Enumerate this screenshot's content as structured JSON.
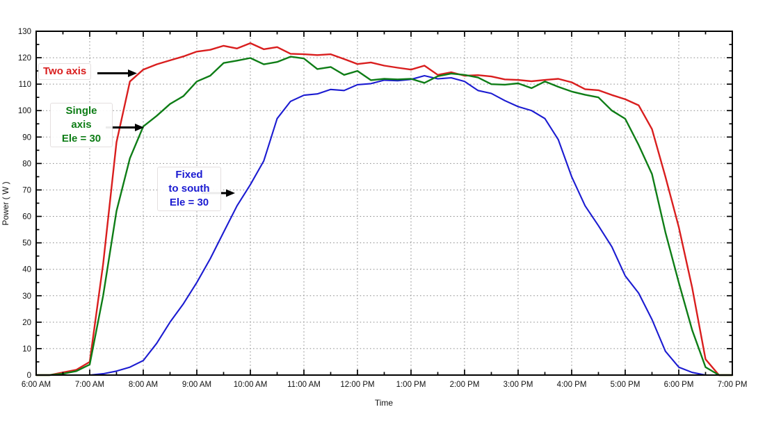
{
  "chart_data": {
    "type": "line",
    "title": "",
    "xlabel": "Time",
    "ylabel": "Power ( W )",
    "ylim": [
      0,
      130
    ],
    "xlim_hours": [
      6,
      19
    ],
    "grid": "dotted, at every hour (x) and every 10 W (y)",
    "legend_position": "none (in-plot text annotations with arrows)",
    "axis_color": "#000000",
    "grid_color": "#8a8a8a",
    "x_tick_labels": [
      "6:00 AM",
      "7:00 AM",
      "8:00 AM",
      "9:00 AM",
      "10:00 AM",
      "11:00 AM",
      "12:00 PM",
      "1:00 PM",
      "2:00 PM",
      "3:00 PM",
      "4:00 PM",
      "5:00 PM",
      "6:00 PM",
      "7:00 PM"
    ],
    "y_tick_values": [
      0,
      10,
      20,
      30,
      40,
      50,
      60,
      70,
      80,
      90,
      100,
      110,
      120,
      130
    ],
    "x_minor_step_hours": 0.5,
    "y_minor_step": 5,
    "x_hours": [
      6,
      6.25,
      6.5,
      6.75,
      7,
      7.25,
      7.5,
      7.75,
      8,
      8.25,
      8.5,
      8.75,
      9,
      9.25,
      9.5,
      9.75,
      10,
      10.25,
      10.5,
      10.75,
      11,
      11.25,
      11.5,
      11.75,
      12,
      12.25,
      12.5,
      12.75,
      13,
      13.25,
      13.5,
      13.75,
      14,
      14.25,
      14.5,
      14.75,
      15,
      15.25,
      15.5,
      15.75,
      16,
      16.25,
      16.5,
      16.75,
      17,
      17.25,
      17.5,
      17.75,
      18,
      18.25,
      18.5,
      18.75,
      19
    ],
    "series": [
      {
        "id": "two-axis",
        "name": "Two axis",
        "color": "#d91e1e",
        "width": 2.4,
        "values": [
          0,
          0,
          1,
          2,
          5,
          42,
          88,
          111,
          115.5,
          117.5,
          119,
          120.5,
          122.3,
          123,
          124.5,
          123.5,
          125.5,
          123.2,
          124,
          121.5,
          121.3,
          121,
          121.3,
          119.5,
          117.6,
          118.2,
          117,
          116.2,
          115.5,
          117,
          113.5,
          114.5,
          113.2,
          113.4,
          112.9,
          111.8,
          111.6,
          111.1,
          111.6,
          112,
          110.7,
          108.1,
          107.7,
          105.9,
          104.3,
          102,
          93,
          75,
          56,
          33,
          6,
          0,
          0
        ]
      },
      {
        "id": "single-axis",
        "name": "Single axis Ele = 30",
        "color": "#0e7d16",
        "width": 2.4,
        "values": [
          0,
          0,
          0.5,
          1.5,
          4,
          30,
          62,
          82,
          94,
          98,
          102.5,
          105.5,
          111,
          113.2,
          118,
          118.9,
          119.9,
          117.5,
          118.4,
          120.4,
          119.7,
          115.7,
          116.5,
          113.5,
          115,
          111.5,
          112,
          111.8,
          112,
          110.5,
          113,
          114,
          113.5,
          112.5,
          110,
          109.8,
          110.3,
          108.5,
          111,
          109,
          107.2,
          106,
          105,
          100,
          96.9,
          87,
          76,
          54,
          35,
          17,
          3,
          0,
          0
        ]
      },
      {
        "id": "fixed-south",
        "name": "Fixed to south Ele = 30",
        "color": "#1b1bd1",
        "width": 2.1,
        "values": [
          0,
          0,
          0,
          0,
          0,
          0.5,
          1.5,
          3,
          5.5,
          12,
          20,
          27,
          35,
          44,
          54,
          64,
          72,
          81,
          97,
          103.5,
          105.8,
          106.3,
          108,
          107.6,
          109.8,
          110.2,
          111.5,
          111.3,
          111.8,
          113.2,
          112,
          112.4,
          111,
          107.6,
          106.5,
          103.8,
          101.5,
          100,
          97,
          89,
          75,
          64,
          56.5,
          48.5,
          37.5,
          31,
          21,
          9,
          3,
          1,
          0,
          0,
          0
        ]
      }
    ]
  },
  "annotations": {
    "two_axis": {
      "text": "Two axis",
      "color": "#d91e1e"
    },
    "single_axis": {
      "line1": "Single",
      "line2": "axis",
      "line3": "Ele = 30",
      "color": "#0e7d16"
    },
    "fixed_south": {
      "line1": "Fixed",
      "line2": "to south",
      "line3": "Ele = 30",
      "color": "#1b1bd1"
    }
  }
}
